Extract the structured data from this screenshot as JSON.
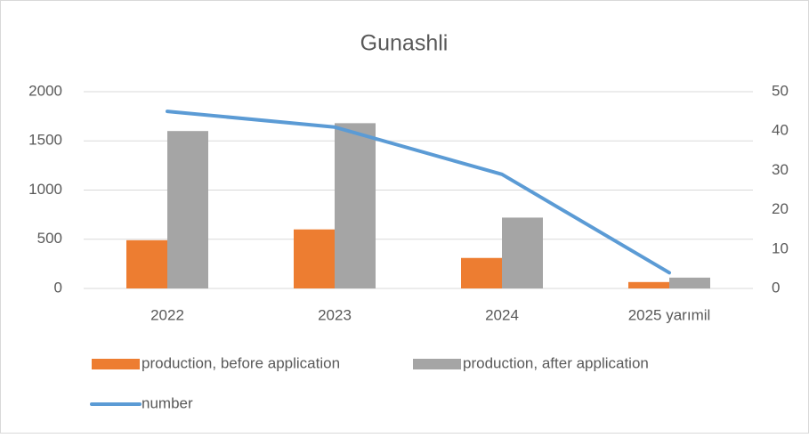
{
  "chart_data": {
    "type": "combo",
    "title": "Gunashli",
    "categories": [
      "2022",
      "2023",
      "2024",
      "2025 yarımil"
    ],
    "series": [
      {
        "name": "production, before application",
        "type": "bar",
        "color": "#ed7d31",
        "values": [
          490,
          600,
          310,
          65
        ]
      },
      {
        "name": "production, after application",
        "type": "bar",
        "color": "#a5a5a5",
        "values": [
          1600,
          1680,
          720,
          110
        ]
      },
      {
        "name": "number",
        "type": "line",
        "axis": "y2",
        "color": "#5b9bd5",
        "values": [
          45,
          41,
          29,
          4
        ]
      }
    ],
    "ylim": [
      0,
      2000
    ],
    "yticks": [
      0,
      500,
      1000,
      1500,
      2000
    ],
    "y2lim": [
      0,
      50
    ],
    "y2ticks": [
      0,
      10,
      20,
      30,
      40,
      50
    ],
    "grid": true,
    "legend": "bottom"
  }
}
